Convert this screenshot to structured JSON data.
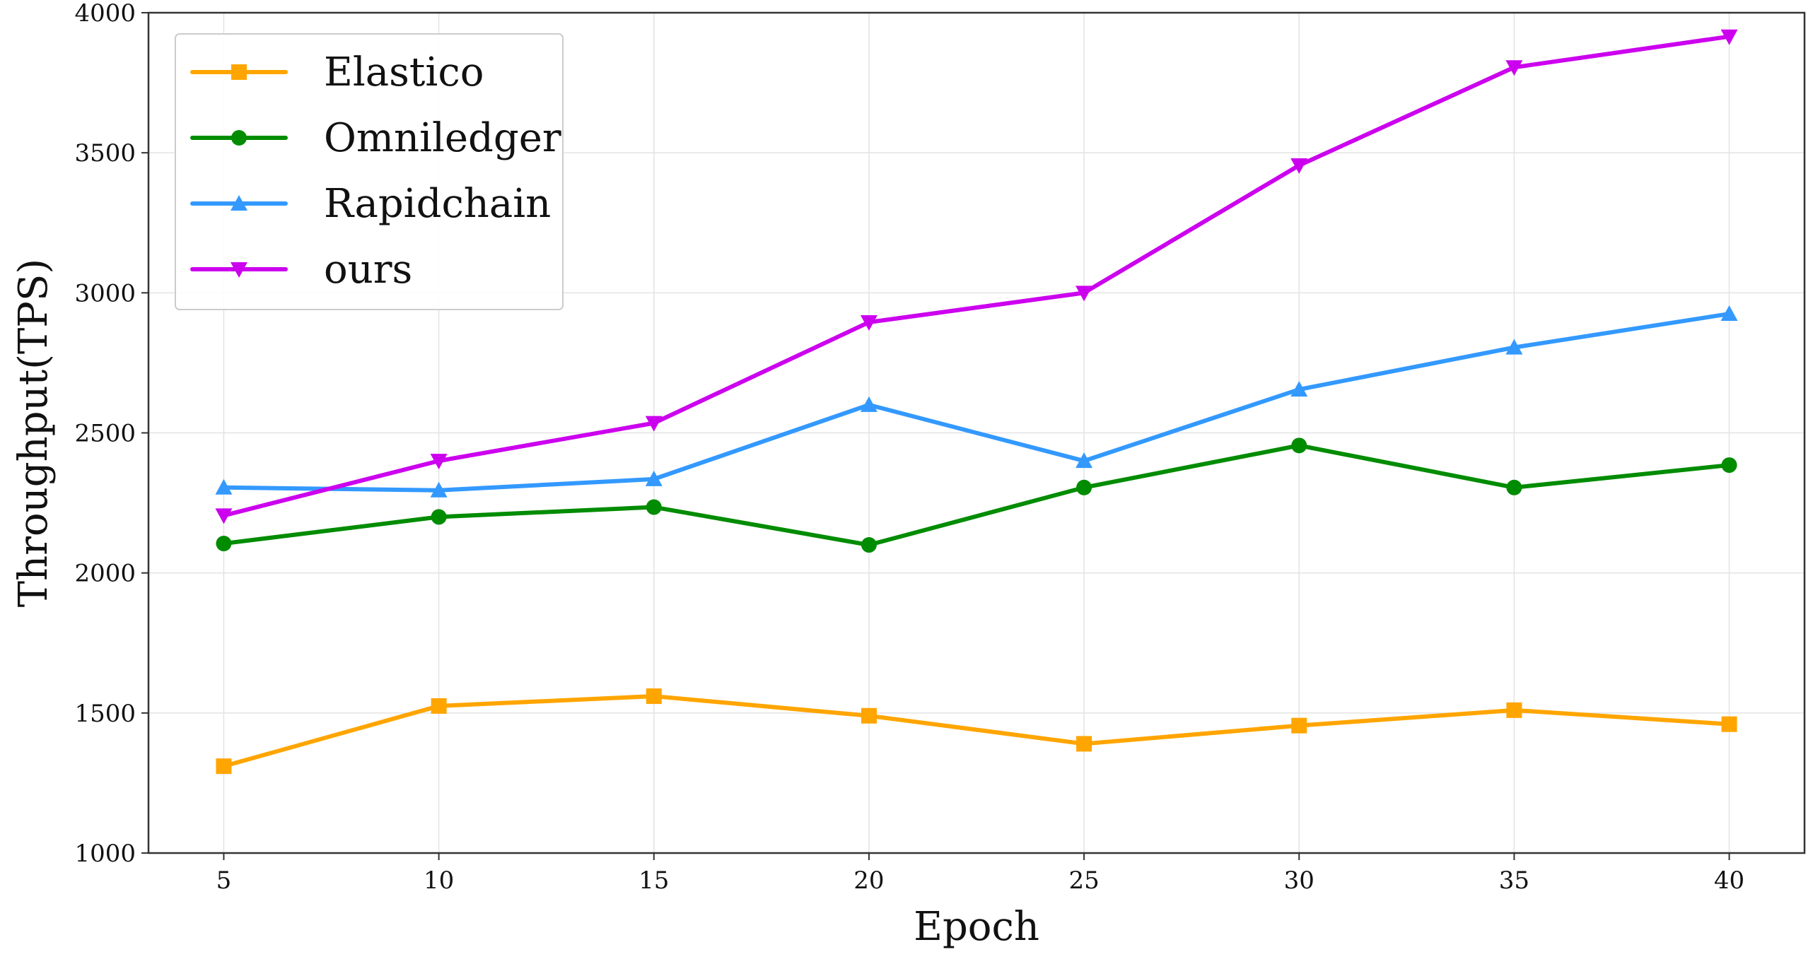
{
  "chart_data": {
    "type": "line",
    "title": "",
    "xlabel": "Epoch",
    "ylabel": "Throughput(TPS)",
    "x": [
      5,
      10,
      15,
      20,
      25,
      30,
      35,
      40
    ],
    "xticks": [
      "5",
      "10",
      "15",
      "20",
      "25",
      "30",
      "35",
      "40"
    ],
    "yticks": [
      "1000",
      "1500",
      "2000",
      "2500",
      "3000",
      "3500",
      "4000"
    ],
    "ylim": [
      1000,
      4000
    ],
    "grid": true,
    "legend_position": "top-left",
    "series": [
      {
        "name": "Elastico",
        "color": "#FFA500",
        "marker": "square",
        "values": [
          1310,
          1525,
          1560,
          1490,
          1390,
          1455,
          1510,
          1460
        ]
      },
      {
        "name": "Omniledger",
        "color": "#008C00",
        "marker": "circle",
        "values": [
          2105,
          2200,
          2235,
          2100,
          2305,
          2455,
          2305,
          2385
        ]
      },
      {
        "name": "Rapidchain",
        "color": "#3399FF",
        "marker": "triangle-up",
        "values": [
          2305,
          2295,
          2335,
          2600,
          2400,
          2655,
          2805,
          2925
        ]
      },
      {
        "name": "ours",
        "color": "#CC00EE",
        "marker": "triangle-down",
        "values": [
          2205,
          2400,
          2535,
          2895,
          3000,
          3455,
          3805,
          3915
        ]
      }
    ]
  }
}
